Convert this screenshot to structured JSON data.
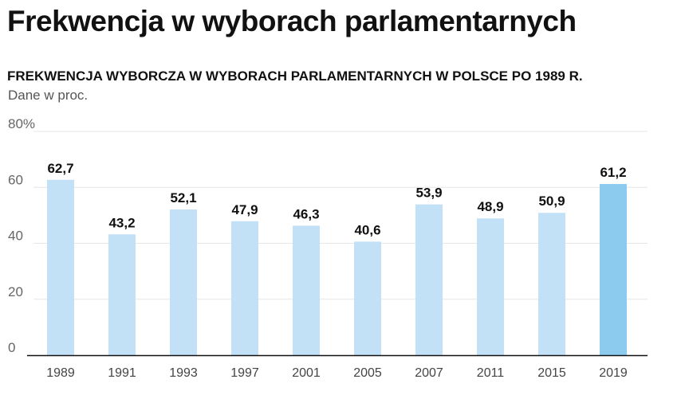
{
  "header": {
    "title": "Frekwencja w wyborach parlamentarnych",
    "subtitle": "FREKWENCJA WYBORCZA W WYBORACH PARLAMENTARNYCH W POLSCE PO 1989 R.",
    "unit_note": "Dane w proc."
  },
  "chart_data": {
    "type": "bar",
    "title": "FREKWENCJA WYBORCZA W WYBORACH PARLAMENTARNYCH W POLSCE PO 1989 R.",
    "categories": [
      "1989",
      "1991",
      "1993",
      "1997",
      "2001",
      "2005",
      "2007",
      "2011",
      "2015",
      "2019"
    ],
    "values": [
      62.7,
      43.2,
      52.1,
      47.9,
      46.3,
      40.6,
      53.9,
      48.9,
      50.9,
      61.2
    ],
    "value_labels": [
      "62,7",
      "43,2",
      "52,1",
      "47,9",
      "46,3",
      "40,6",
      "53,9",
      "48,9",
      "50,9",
      "61,2"
    ],
    "ylim": [
      0,
      80
    ],
    "yticks": [
      0,
      20,
      40,
      60,
      80
    ],
    "ytick_labels": [
      "0",
      "20",
      "40",
      "60",
      "80%"
    ],
    "grid": true,
    "colors": {
      "bar": "#c3e1f6",
      "highlight": "#8ccbee",
      "grid": "#e6e6e6",
      "axis": "#111111"
    },
    "highlight_index": 9
  }
}
